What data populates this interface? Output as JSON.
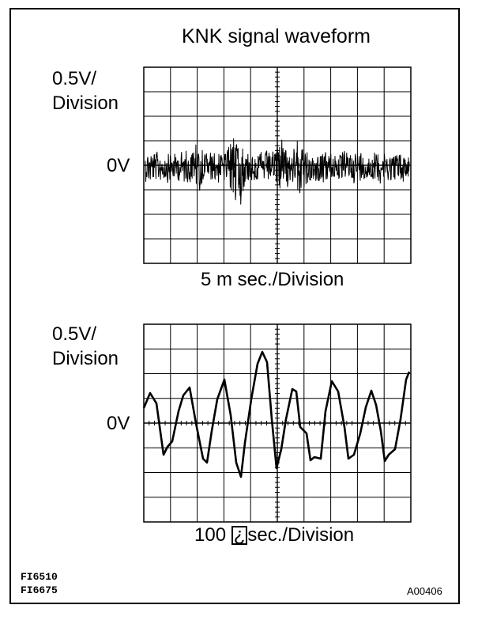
{
  "title": "KNK signal waveform",
  "top_scope": {
    "volt_label_line1": "0.5V/",
    "volt_label_line2": "Division",
    "zero_label": "0V",
    "time_label": "5 m sec./Division"
  },
  "bottom_scope": {
    "volt_label_line1": "0.5V/",
    "volt_label_line2": "Division",
    "zero_label": "0V",
    "time_label_prefix": "100 ",
    "time_label_glyph": "¿",
    "time_label_suffix": "sec./Division"
  },
  "figure_codes": [
    "FI6510",
    "FI6675"
  ],
  "figure_id": "A00406",
  "colors": {
    "ink": "#000000",
    "background": "#ffffff"
  }
}
